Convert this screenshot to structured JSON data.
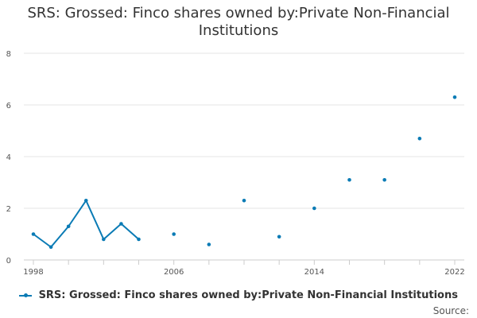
{
  "chart_data": {
    "type": "line",
    "title_lines": [
      "SRS: Grossed: Finco shares owned by:Private Non-Financial",
      "Institutions"
    ],
    "xlabel": "",
    "ylabel": "",
    "x_ticks": [
      "1998",
      "2006",
      "2014",
      "2022"
    ],
    "y_ticks": [
      "0",
      "2",
      "4",
      "6",
      "8"
    ],
    "xlim": [
      1998,
      2022
    ],
    "ylim": [
      0,
      8
    ],
    "grid": "horizontal",
    "legend_position": "bottom",
    "series": [
      {
        "name": "SRS: Grossed: Finco shares owned by:Private Non-Financial Institutions",
        "color": "#0a7bb5",
        "x": [
          1998,
          1999,
          2000,
          2001,
          2002,
          2003,
          2004,
          2006,
          2008,
          2010,
          2012,
          2014,
          2016,
          2018,
          2020,
          2022
        ],
        "y": [
          1.0,
          0.5,
          1.3,
          2.3,
          0.8,
          1.4,
          0.8,
          1.0,
          0.6,
          2.3,
          0.9,
          2.0,
          3.1,
          3.1,
          4.7,
          6.3
        ]
      }
    ]
  },
  "source_label": "Source:"
}
